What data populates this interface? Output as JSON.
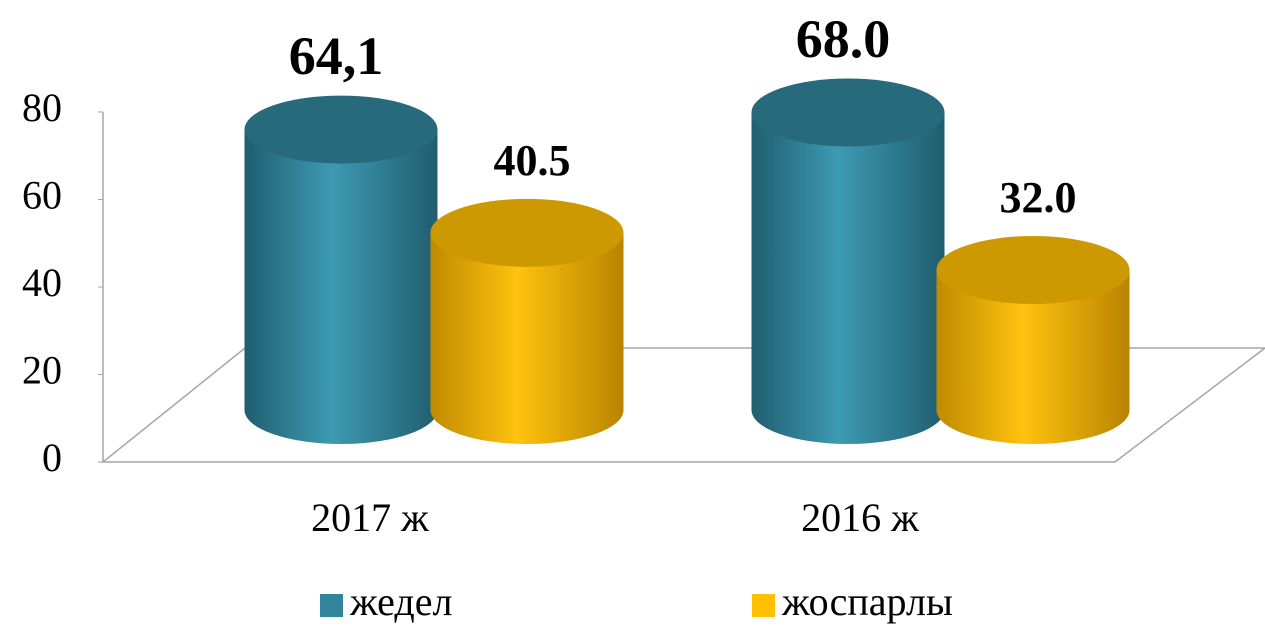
{
  "chart_data": {
    "type": "cylinder-bar",
    "categories": [
      "2017 ж",
      "2016 ж"
    ],
    "series": [
      {
        "name": "жедел",
        "color": "#31849b",
        "label_color": "#000000",
        "values": [
          64.1,
          68.0
        ],
        "value_labels": [
          "64,1",
          "68.0"
        ]
      },
      {
        "name": "жоспарлы",
        "color": "#ffc000",
        "label_color": "#0000ff",
        "values": [
          40.5,
          32.0
        ],
        "value_labels": [
          "40.5",
          "32.0"
        ]
      }
    ],
    "ylim": [
      0,
      80
    ],
    "yticks": [
      0,
      20,
      40,
      60,
      80
    ],
    "legend": "bottom"
  }
}
